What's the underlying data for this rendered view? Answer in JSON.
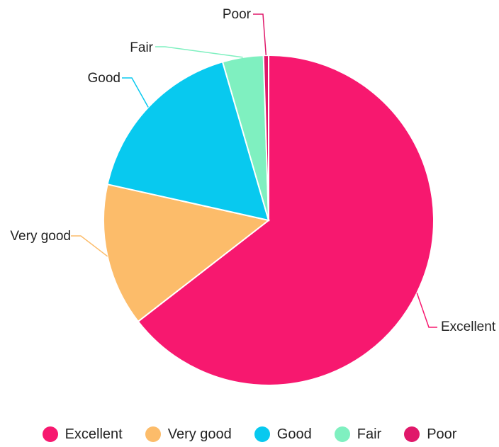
{
  "chart_data": {
    "type": "pie",
    "title": "",
    "categories": [
      "Excellent",
      "Very good",
      "Good",
      "Fair",
      "Poor"
    ],
    "values": [
      64.5,
      14.0,
      17.0,
      4.0,
      0.5
    ],
    "unit": "percent",
    "colors": [
      "#f7186f",
      "#fcbc6a",
      "#08c9ef",
      "#7ff0c0",
      "#e0186a"
    ],
    "start_angle_deg": 0,
    "direction": "clockwise",
    "legend": {
      "position": "bottom",
      "entries": [
        "Excellent",
        "Very good",
        "Good",
        "Fair",
        "Poor"
      ]
    },
    "labels_outside": true
  }
}
